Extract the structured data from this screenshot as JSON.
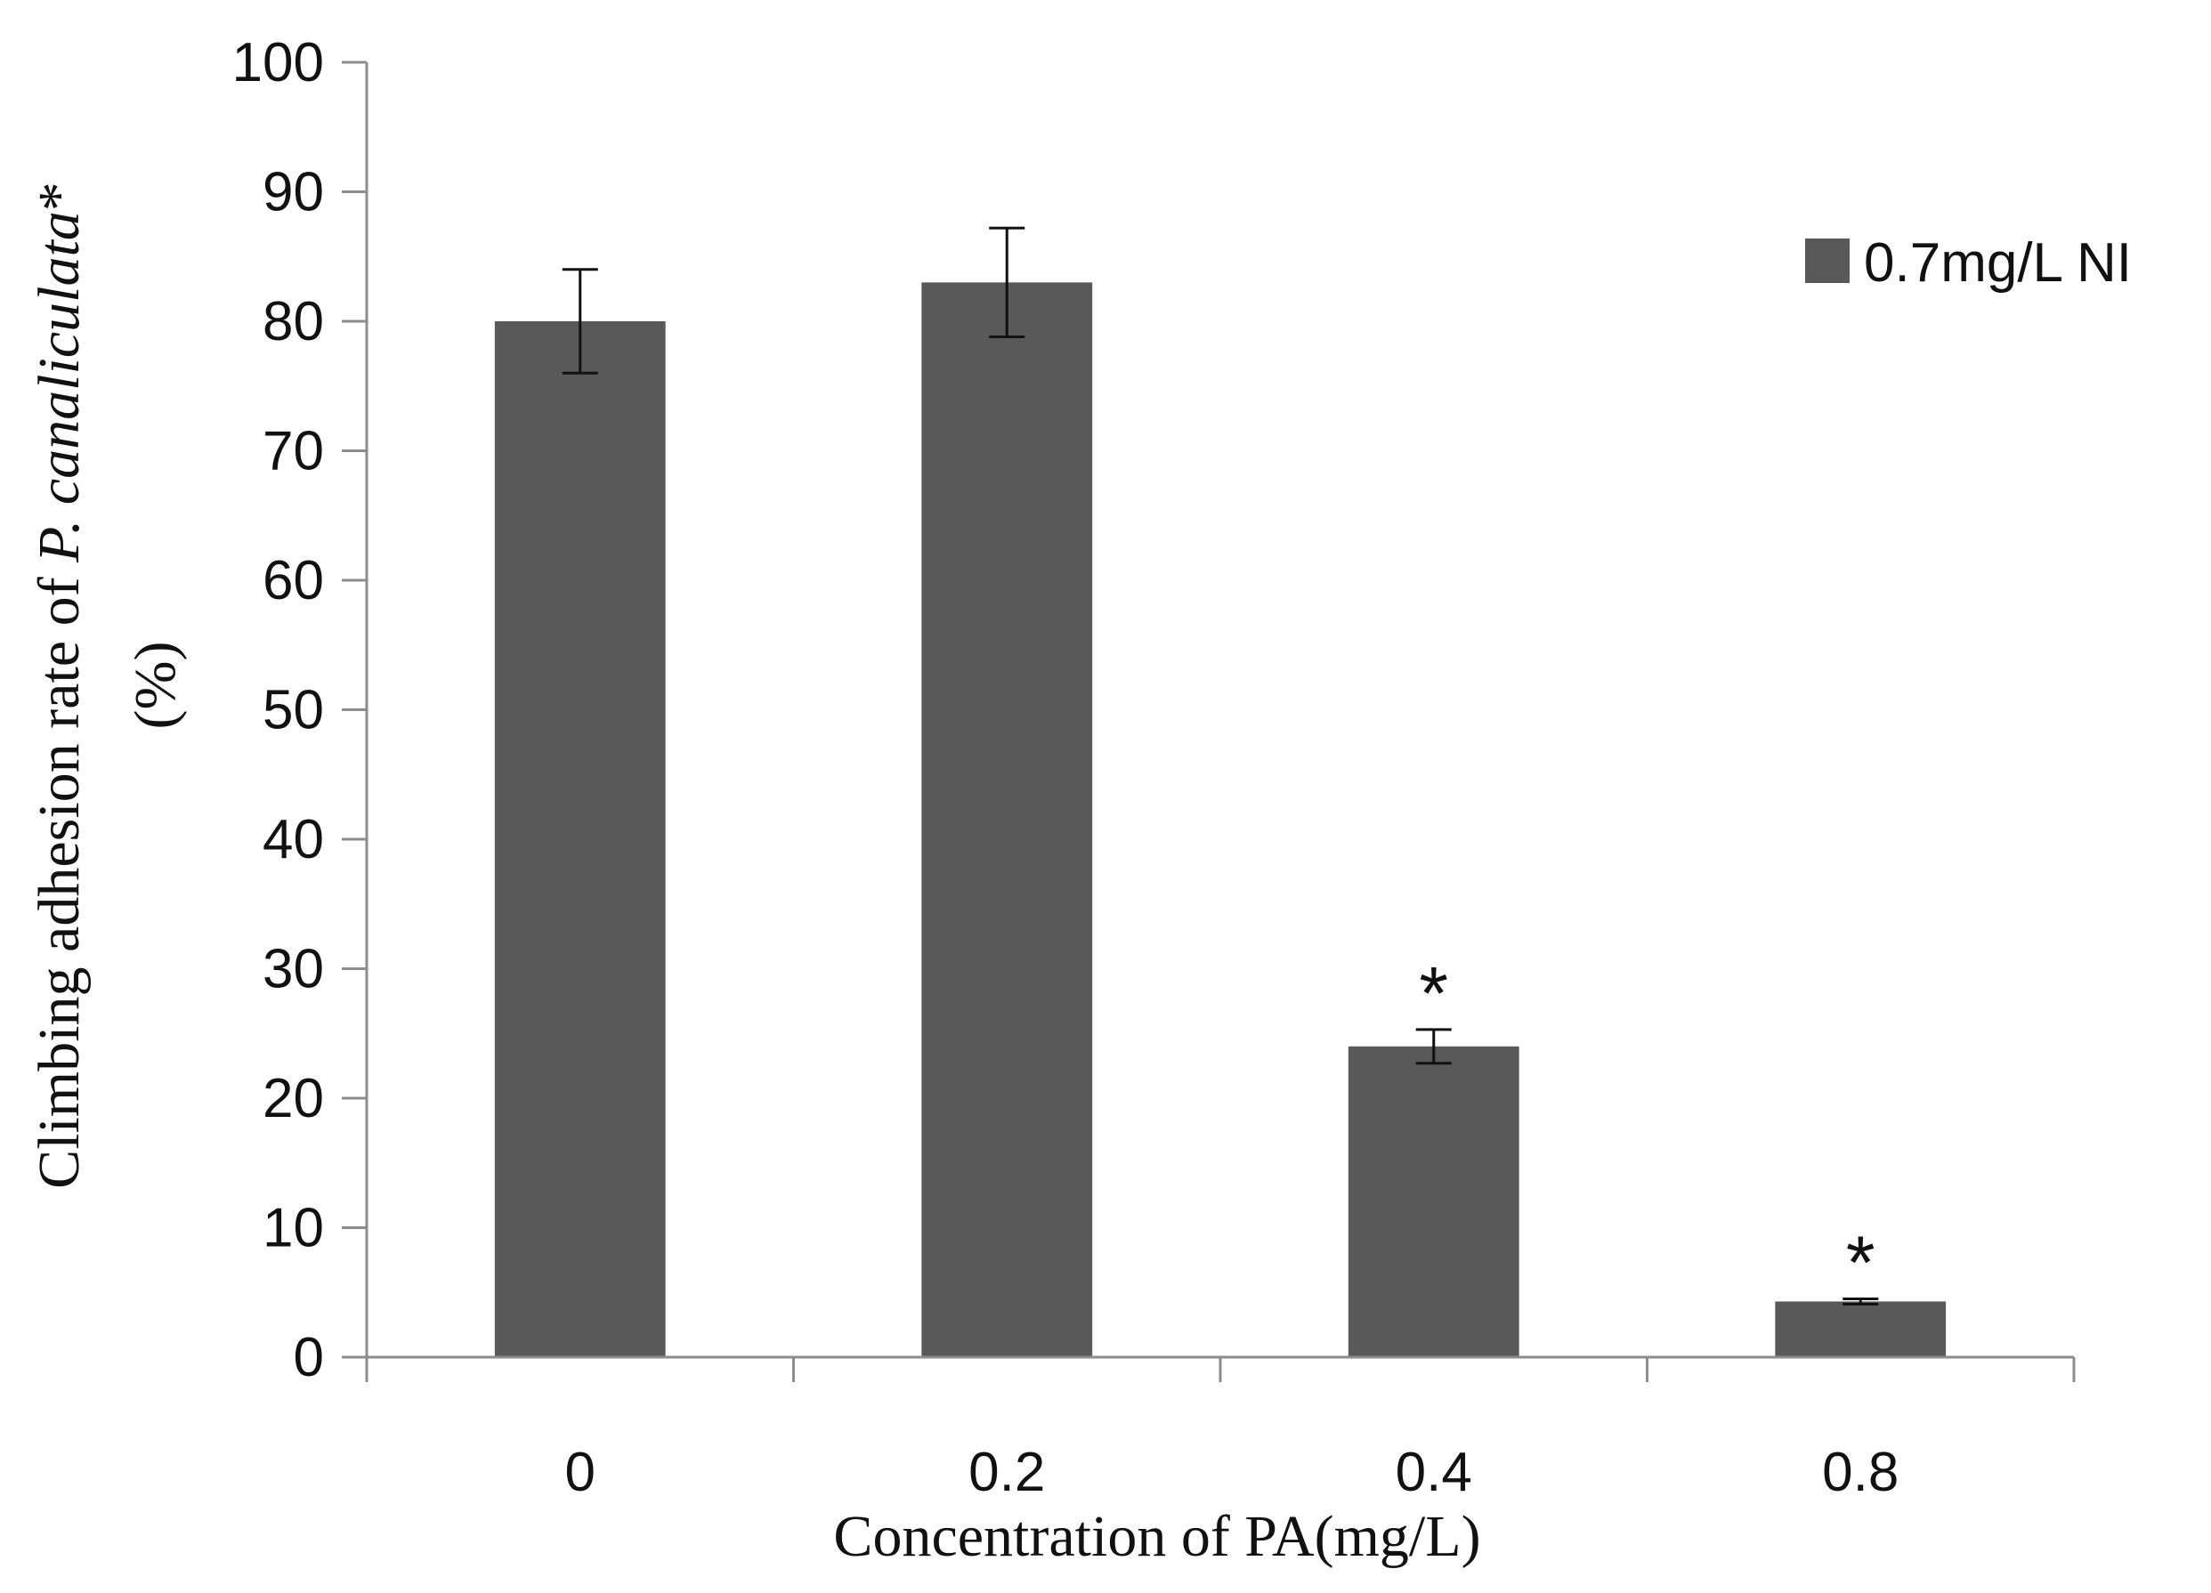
{
  "chart_data": {
    "type": "bar",
    "title": "",
    "xlabel": "Concentration of PA(mg/L)",
    "ylabel": {
      "prefix": "Climbing adhesion rate of ",
      "species": "P. canaliculata",
      "suffix": "*",
      "unit": "(%)"
    },
    "categories": [
      "0",
      "0.2",
      "0.4",
      "0.8"
    ],
    "series": [
      {
        "name": "0.7mg/L NI",
        "color": "#595959",
        "values": [
          80,
          83,
          24,
          4.3
        ],
        "errors": [
          4,
          4.2,
          1.3,
          0.2
        ],
        "significance": [
          "",
          "",
          "*",
          "*"
        ]
      }
    ],
    "ylim": [
      0,
      100
    ],
    "yticks": [
      "0",
      "10",
      "20",
      "30",
      "40",
      "50",
      "60",
      "70",
      "80",
      "90",
      "100"
    ],
    "grid": false,
    "legend_position": "top-right"
  }
}
